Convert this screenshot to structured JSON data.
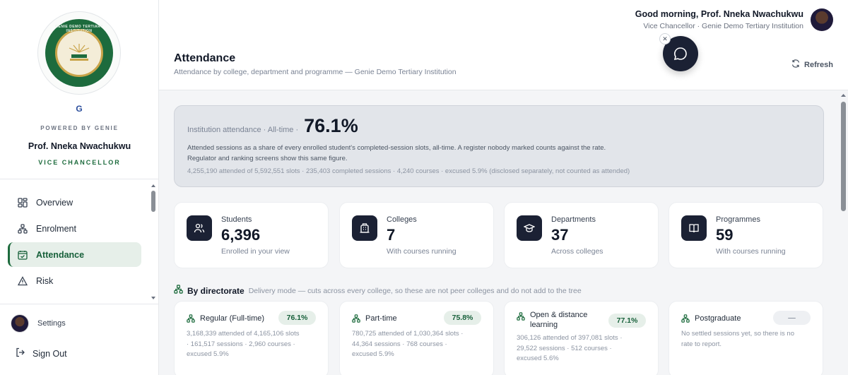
{
  "sidebar": {
    "seal_text": "GENIE DEMO TERTIARY INSTITUTION",
    "powered_by": "POWERED BY GENIE",
    "user_name": "Prof. Nneka Nwachukwu",
    "user_role": "VICE CHANCELLOR",
    "nav": [
      {
        "label": "Overview",
        "icon": "grid-icon"
      },
      {
        "label": "Enrolment",
        "icon": "hierarchy-icon"
      },
      {
        "label": "Attendance",
        "icon": "calendar-check-icon",
        "active": true
      },
      {
        "label": "Risk",
        "icon": "warning-icon"
      }
    ],
    "settings_label": "Settings",
    "signout_label": "Sign Out"
  },
  "header": {
    "greeting": "Good morning, Prof. Nneka Nwachukwu",
    "subtitle": "Vice Chancellor · Genie Demo Tertiary Institution",
    "title": "Attendance",
    "description": "Attendance by college, department and programme — Genie Demo Tertiary Institution",
    "refresh_label": "Refresh"
  },
  "hero": {
    "label": "Institution attendance · All-time ·",
    "value": "76.1%",
    "desc1": "Attended sessions as a share of every enrolled student's completed-session slots, all-time. A register nobody marked counts against the rate.",
    "desc2": "Regulator and ranking screens show this same figure.",
    "foot": "4,255,190 attended of 5,592,551 slots · 235,403 completed sessions · 4,240 courses · excused 5.9% (disclosed separately, not counted as attended)"
  },
  "stats": [
    {
      "label": "Students",
      "value": "6,396",
      "note": "Enrolled in your view",
      "icon": "users-icon"
    },
    {
      "label": "Colleges",
      "value": "7",
      "note": "With courses running",
      "icon": "building-icon"
    },
    {
      "label": "Departments",
      "value": "37",
      "note": "Across colleges",
      "icon": "graduation-cap-icon"
    },
    {
      "label": "Programmes",
      "value": "59",
      "note": "With courses running",
      "icon": "book-icon"
    }
  ],
  "directorate": {
    "title": "By directorate",
    "note": "Delivery mode — cuts across every college, so these are not peer colleges and do not add to the tree",
    "cards": [
      {
        "title": "Regular (Full-time)",
        "rate": "76.1%",
        "line1": "3,168,339 attended of 4,165,106 slots",
        "line2": "· 161,517 sessions · 2,960 courses ·",
        "line3": "excused 5.9%"
      },
      {
        "title": "Part-time",
        "rate": "75.8%",
        "line1": "780,725 attended of 1,030,364 slots ·",
        "line2": "44,364 sessions · 768 courses ·",
        "line3": "excused 5.9%"
      },
      {
        "title": "Open & distance learning",
        "rate": "77.1%",
        "line1": "306,126 attended of 397,081 slots ·",
        "line2": "29,522 sessions · 512 courses ·",
        "line3": "excused 5.6%"
      },
      {
        "title": "Postgraduate",
        "rate": "—",
        "line1": "No settled sessions yet, so there is no",
        "line2": "rate to report.",
        "line3": ""
      }
    ]
  },
  "colors": {
    "brand_green": "#1d6b3d",
    "navy": "#1b2134",
    "active_bg": "#e6efe9"
  }
}
